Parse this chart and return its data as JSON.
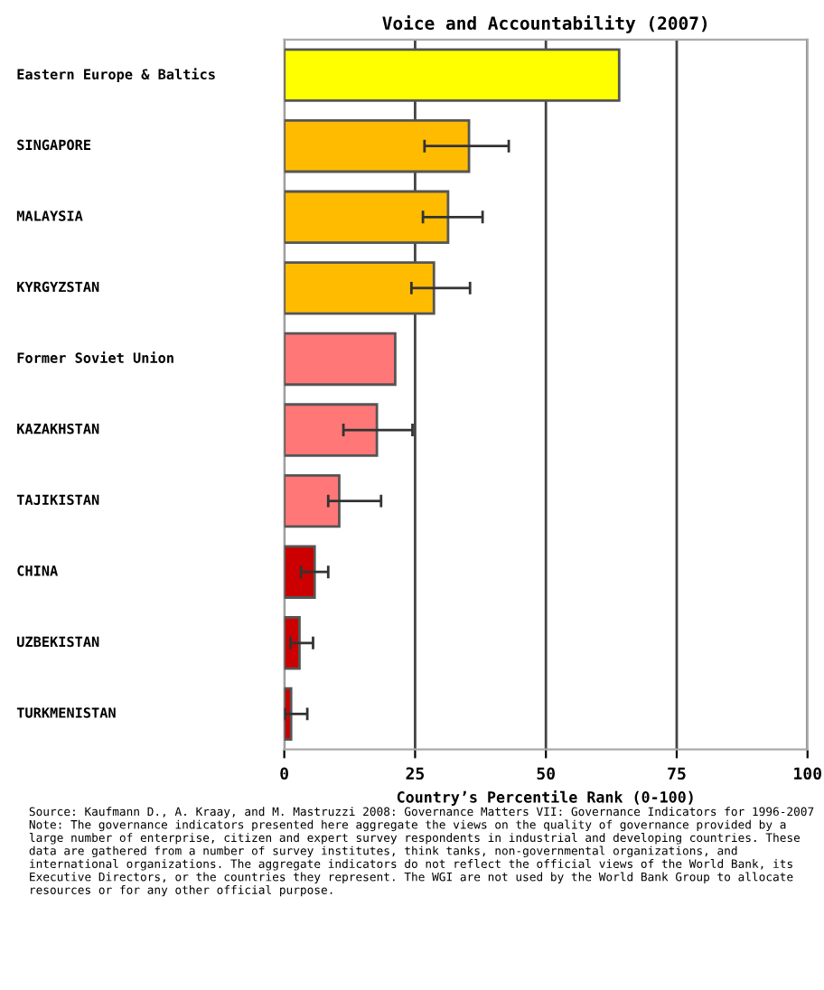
{
  "chart_data": {
    "type": "bar",
    "orientation": "horizontal",
    "title": "Voice and Accountability (2007)",
    "xlabel": "Country’s Percentile Rank (0-100)",
    "categories": [
      "Eastern Europe & Baltics",
      "SINGAPORE",
      "MALAYSIA",
      "KYRGYZSTAN",
      "Former Soviet Union",
      "KAZAKHSTAN",
      "TAJIKISTAN",
      "CHINA",
      "UZBEKISTAN",
      "TURKMENISTAN"
    ],
    "values": [
      64,
      35.3,
      31.3,
      28.6,
      21.2,
      17.7,
      10.5,
      5.8,
      2.9,
      1.3
    ],
    "errors": [
      null,
      [
        26.8,
        42.9
      ],
      [
        26.5,
        37.9
      ],
      [
        24.3,
        35.5
      ],
      null,
      [
        11.3,
        24.5
      ],
      [
        8.4,
        18.5
      ],
      [
        3.2,
        8.4
      ],
      [
        1.2,
        5.5
      ],
      [
        0.1,
        4.4
      ]
    ],
    "colors": [
      "#ffff00",
      "#ffbb00",
      "#ffbb00",
      "#ffbb00",
      "#ff7777",
      "#ff7777",
      "#ff7777",
      "#cc0000",
      "#cc0000",
      "#cc0000"
    ],
    "xlim": [
      0,
      100
    ],
    "xticks": [
      0,
      25,
      50,
      75,
      100
    ],
    "grid": "x",
    "annotations": [
      "Source: Kaufmann D., A. Kraay, and M. Mastruzzi 2008: Governance Matters VII: Governance Indicators for 1996-2007",
      "Note: The governance indicators presented here aggregate the views on the quality of governance provided by a large number of enterprise, citizen and expert survey respondents in industrial and developing countries. These data are gathered from a number of survey institutes, think tanks, non-governmental organizations, and international organizations. The aggregate indicators do not reflect the official views of the World Bank, its Executive Directors, or the countries they represent. The WGI are not used by the World Bank Group to allocate resources or for any other official purpose."
    ]
  }
}
